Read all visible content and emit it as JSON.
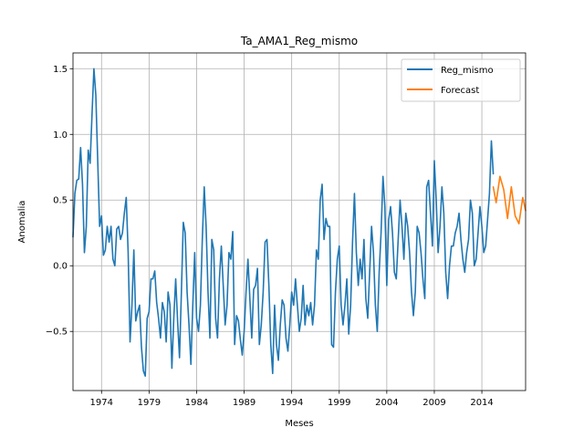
{
  "chart_data": {
    "type": "line",
    "title": "Ta_AMA1_Reg_mismo",
    "xlabel": "Meses",
    "ylabel": "Anomalia",
    "x_range": [
      1971.0,
      2018.6
    ],
    "ylim": [
      -0.95,
      1.62
    ],
    "x_ticks": [
      1974,
      1979,
      1984,
      1989,
      1994,
      1999,
      2004,
      2009,
      2014
    ],
    "x_tick_labels": [
      "1974",
      "1979",
      "1984",
      "1989",
      "1994",
      "1999",
      "2004",
      "2009",
      "2014"
    ],
    "y_ticks": [
      -0.5,
      0.0,
      0.5,
      1.0,
      1.5
    ],
    "y_tick_labels": [
      "−0.5",
      "0.0",
      "0.5",
      "1.0",
      "1.5"
    ],
    "grid": true,
    "legend_position": "top-right",
    "series": [
      {
        "name": "Reg_mismo",
        "color": "#1f77b4",
        "points": [
          [
            1971.0,
            0.22
          ],
          [
            1971.2,
            0.55
          ],
          [
            1971.4,
            0.65
          ],
          [
            1971.6,
            0.66
          ],
          [
            1971.8,
            0.9
          ],
          [
            1972.0,
            0.62
          ],
          [
            1972.2,
            0.1
          ],
          [
            1972.4,
            0.3
          ],
          [
            1972.6,
            0.88
          ],
          [
            1972.8,
            0.78
          ],
          [
            1973.0,
            1.15
          ],
          [
            1973.2,
            1.5
          ],
          [
            1973.4,
            1.3
          ],
          [
            1973.6,
            0.8
          ],
          [
            1973.8,
            0.3
          ],
          [
            1974.0,
            0.38
          ],
          [
            1974.2,
            0.08
          ],
          [
            1974.4,
            0.12
          ],
          [
            1974.6,
            0.3
          ],
          [
            1974.8,
            0.18
          ],
          [
            1975.0,
            0.3
          ],
          [
            1975.2,
            0.05
          ],
          [
            1975.4,
            0.0
          ],
          [
            1975.6,
            0.28
          ],
          [
            1975.8,
            0.3
          ],
          [
            1976.0,
            0.2
          ],
          [
            1976.2,
            0.25
          ],
          [
            1976.4,
            0.4
          ],
          [
            1976.6,
            0.52
          ],
          [
            1976.8,
            0.1
          ],
          [
            1977.0,
            -0.58
          ],
          [
            1977.2,
            -0.3
          ],
          [
            1977.4,
            0.12
          ],
          [
            1977.6,
            -0.42
          ],
          [
            1977.8,
            -0.35
          ],
          [
            1978.0,
            -0.3
          ],
          [
            1978.2,
            -0.62
          ],
          [
            1978.4,
            -0.8
          ],
          [
            1978.6,
            -0.84
          ],
          [
            1978.8,
            -0.4
          ],
          [
            1979.0,
            -0.35
          ],
          [
            1979.2,
            -0.1
          ],
          [
            1979.4,
            -0.1
          ],
          [
            1979.6,
            -0.04
          ],
          [
            1979.8,
            -0.28
          ],
          [
            1980.0,
            -0.4
          ],
          [
            1980.2,
            -0.55
          ],
          [
            1980.4,
            -0.28
          ],
          [
            1980.6,
            -0.35
          ],
          [
            1980.8,
            -0.58
          ],
          [
            1981.0,
            -0.2
          ],
          [
            1981.2,
            -0.3
          ],
          [
            1981.4,
            -0.78
          ],
          [
            1981.6,
            -0.4
          ],
          [
            1981.8,
            -0.1
          ],
          [
            1982.0,
            -0.42
          ],
          [
            1982.2,
            -0.7
          ],
          [
            1982.4,
            -0.2
          ],
          [
            1982.6,
            0.33
          ],
          [
            1982.8,
            0.25
          ],
          [
            1983.0,
            -0.2
          ],
          [
            1983.2,
            -0.45
          ],
          [
            1983.4,
            -0.75
          ],
          [
            1983.6,
            -0.3
          ],
          [
            1983.8,
            0.1
          ],
          [
            1984.0,
            -0.4
          ],
          [
            1984.2,
            -0.5
          ],
          [
            1984.4,
            -0.3
          ],
          [
            1984.6,
            0.2
          ],
          [
            1984.8,
            0.6
          ],
          [
            1985.0,
            0.3
          ],
          [
            1985.2,
            -0.2
          ],
          [
            1985.4,
            -0.55
          ],
          [
            1985.6,
            0.2
          ],
          [
            1985.8,
            0.12
          ],
          [
            1986.0,
            -0.4
          ],
          [
            1986.2,
            -0.55
          ],
          [
            1986.4,
            -0.1
          ],
          [
            1986.6,
            0.15
          ],
          [
            1986.8,
            -0.15
          ],
          [
            1987.0,
            -0.45
          ],
          [
            1987.2,
            -0.3
          ],
          [
            1987.4,
            0.1
          ],
          [
            1987.6,
            0.05
          ],
          [
            1987.8,
            0.26
          ],
          [
            1988.0,
            -0.6
          ],
          [
            1988.2,
            -0.38
          ],
          [
            1988.4,
            -0.42
          ],
          [
            1988.6,
            -0.56
          ],
          [
            1988.8,
            -0.68
          ],
          [
            1989.0,
            -0.5
          ],
          [
            1989.2,
            -0.2
          ],
          [
            1989.4,
            0.05
          ],
          [
            1989.6,
            -0.25
          ],
          [
            1989.8,
            -0.55
          ],
          [
            1990.0,
            -0.18
          ],
          [
            1990.2,
            -0.15
          ],
          [
            1990.4,
            -0.02
          ],
          [
            1990.6,
            -0.6
          ],
          [
            1990.8,
            -0.45
          ],
          [
            1991.0,
            -0.2
          ],
          [
            1991.2,
            0.18
          ],
          [
            1991.4,
            0.2
          ],
          [
            1991.6,
            -0.15
          ],
          [
            1991.8,
            -0.6
          ],
          [
            1992.0,
            -0.82
          ],
          [
            1992.2,
            -0.3
          ],
          [
            1992.4,
            -0.6
          ],
          [
            1992.6,
            -0.72
          ],
          [
            1992.8,
            -0.45
          ],
          [
            1993.0,
            -0.26
          ],
          [
            1993.2,
            -0.3
          ],
          [
            1993.4,
            -0.55
          ],
          [
            1993.6,
            -0.65
          ],
          [
            1993.8,
            -0.45
          ],
          [
            1994.0,
            -0.2
          ],
          [
            1994.2,
            -0.3
          ],
          [
            1994.4,
            -0.1
          ],
          [
            1994.6,
            -0.3
          ],
          [
            1994.8,
            -0.5
          ],
          [
            1995.0,
            -0.4
          ],
          [
            1995.2,
            -0.15
          ],
          [
            1995.4,
            -0.45
          ],
          [
            1995.6,
            -0.3
          ],
          [
            1995.8,
            -0.38
          ],
          [
            1996.0,
            -0.28
          ],
          [
            1996.2,
            -0.45
          ],
          [
            1996.4,
            -0.3
          ],
          [
            1996.6,
            0.12
          ],
          [
            1996.8,
            0.05
          ],
          [
            1997.0,
            0.5
          ],
          [
            1997.2,
            0.62
          ],
          [
            1997.4,
            0.2
          ],
          [
            1997.6,
            0.36
          ],
          [
            1997.8,
            0.3
          ],
          [
            1998.0,
            0.3
          ],
          [
            1998.2,
            -0.6
          ],
          [
            1998.4,
            -0.62
          ],
          [
            1998.6,
            -0.2
          ],
          [
            1998.8,
            0.05
          ],
          [
            1999.0,
            0.15
          ],
          [
            1999.2,
            -0.3
          ],
          [
            1999.4,
            -0.45
          ],
          [
            1999.6,
            -0.3
          ],
          [
            1999.8,
            -0.1
          ],
          [
            2000.0,
            -0.52
          ],
          [
            2000.2,
            -0.3
          ],
          [
            2000.4,
            0.18
          ],
          [
            2000.6,
            0.55
          ],
          [
            2000.8,
            0.1
          ],
          [
            2001.0,
            -0.15
          ],
          [
            2001.2,
            0.05
          ],
          [
            2001.4,
            -0.1
          ],
          [
            2001.6,
            0.2
          ],
          [
            2001.8,
            -0.25
          ],
          [
            2002.0,
            -0.4
          ],
          [
            2002.2,
            -0.05
          ],
          [
            2002.4,
            0.3
          ],
          [
            2002.6,
            0.1
          ],
          [
            2002.8,
            -0.3
          ],
          [
            2003.0,
            -0.5
          ],
          [
            2003.2,
            -0.05
          ],
          [
            2003.4,
            0.25
          ],
          [
            2003.6,
            0.68
          ],
          [
            2003.8,
            0.45
          ],
          [
            2004.0,
            -0.15
          ],
          [
            2004.2,
            0.35
          ],
          [
            2004.4,
            0.45
          ],
          [
            2004.6,
            0.25
          ],
          [
            2004.8,
            -0.05
          ],
          [
            2005.0,
            -0.1
          ],
          [
            2005.2,
            0.2
          ],
          [
            2005.4,
            0.5
          ],
          [
            2005.6,
            0.3
          ],
          [
            2005.8,
            0.05
          ],
          [
            2006.0,
            0.4
          ],
          [
            2006.2,
            0.3
          ],
          [
            2006.4,
            0.1
          ],
          [
            2006.6,
            -0.2
          ],
          [
            2006.8,
            -0.38
          ],
          [
            2007.0,
            -0.2
          ],
          [
            2007.2,
            0.3
          ],
          [
            2007.4,
            0.25
          ],
          [
            2007.6,
            0.1
          ],
          [
            2007.8,
            -0.1
          ],
          [
            2008.0,
            -0.25
          ],
          [
            2008.2,
            0.6
          ],
          [
            2008.4,
            0.65
          ],
          [
            2008.6,
            0.4
          ],
          [
            2008.8,
            0.15
          ],
          [
            2009.0,
            0.8
          ],
          [
            2009.2,
            0.5
          ],
          [
            2009.4,
            0.1
          ],
          [
            2009.6,
            0.3
          ],
          [
            2009.8,
            0.6
          ],
          [
            2010.0,
            0.4
          ],
          [
            2010.2,
            -0.05
          ],
          [
            2010.4,
            -0.25
          ],
          [
            2010.6,
            0.0
          ],
          [
            2010.8,
            0.15
          ],
          [
            2011.0,
            0.15
          ],
          [
            2011.2,
            0.25
          ],
          [
            2011.4,
            0.3
          ],
          [
            2011.6,
            0.4
          ],
          [
            2011.8,
            0.2
          ],
          [
            2012.0,
            0.05
          ],
          [
            2012.2,
            -0.05
          ],
          [
            2012.4,
            0.1
          ],
          [
            2012.6,
            0.2
          ],
          [
            2012.8,
            0.5
          ],
          [
            2013.0,
            0.4
          ],
          [
            2013.2,
            0.0
          ],
          [
            2013.4,
            0.05
          ],
          [
            2013.6,
            0.25
          ],
          [
            2013.8,
            0.45
          ],
          [
            2014.0,
            0.3
          ],
          [
            2014.2,
            0.1
          ],
          [
            2014.4,
            0.15
          ],
          [
            2014.6,
            0.35
          ],
          [
            2014.8,
            0.55
          ],
          [
            2015.0,
            0.95
          ],
          [
            2015.2,
            0.7
          ]
        ]
      },
      {
        "name": "Forecast",
        "color": "#ff7f0e",
        "points": [
          [
            2015.2,
            0.6
          ],
          [
            2015.5,
            0.48
          ],
          [
            2015.9,
            0.68
          ],
          [
            2016.3,
            0.58
          ],
          [
            2016.7,
            0.36
          ],
          [
            2017.1,
            0.6
          ],
          [
            2017.5,
            0.38
          ],
          [
            2017.9,
            0.32
          ],
          [
            2018.3,
            0.52
          ],
          [
            2018.6,
            0.42
          ]
        ]
      }
    ]
  }
}
